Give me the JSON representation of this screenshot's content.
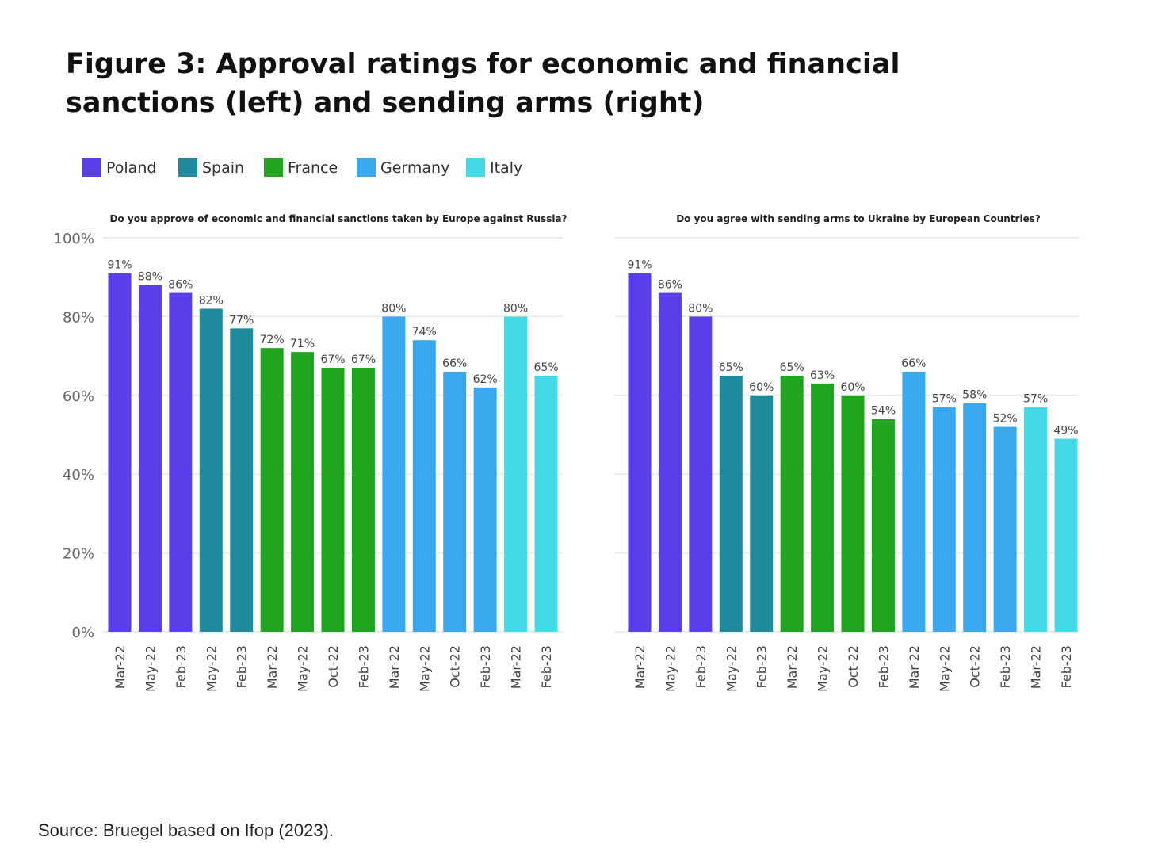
{
  "title_line1": "Figure 3: Approval ratings for economic and financial",
  "title_line2": "sanctions (left) and sending arms (right)",
  "source": "Source: Bruegel based on Ifop (2023).",
  "legend": [
    {
      "label": "Poland",
      "color": "#5a3ee8"
    },
    {
      "label": "Spain",
      "color": "#1f8a9b"
    },
    {
      "label": "France",
      "color": "#1fa51f"
    },
    {
      "label": "Germany",
      "color": "#38a9ee"
    },
    {
      "label": "Italy",
      "color": "#44d9e6"
    }
  ],
  "chart_data": [
    {
      "type": "bar",
      "title": "Do you approve of economic and financial sanctions taken by Europe against Russia?",
      "ylim": [
        0,
        100
      ],
      "yticks": [
        "0%",
        "20%",
        "40%",
        "60%",
        "80%",
        "100%"
      ],
      "grid": true,
      "legend_position": "top-left",
      "categories": [
        "Mar-22",
        "May-22",
        "Feb-23",
        "May-22",
        "Feb-23",
        "Mar-22",
        "May-22",
        "Oct-22",
        "Feb-23",
        "Mar-22",
        "May-22",
        "Oct-22",
        "Feb-23",
        "Mar-22",
        "Feb-23"
      ],
      "country": [
        "Poland",
        "Poland",
        "Poland",
        "Spain",
        "Spain",
        "France",
        "France",
        "France",
        "France",
        "Germany",
        "Germany",
        "Germany",
        "Germany",
        "Italy",
        "Italy"
      ],
      "values": [
        91,
        88,
        86,
        82,
        77,
        72,
        71,
        67,
        67,
        80,
        74,
        66,
        62,
        80,
        65
      ]
    },
    {
      "type": "bar",
      "title": "Do you agree with sending arms to Ukraine by European Countries?",
      "ylim": [
        0,
        100
      ],
      "grid": true,
      "categories": [
        "Mar-22",
        "May-22",
        "Feb-23",
        "May-22",
        "Feb-23",
        "Mar-22",
        "May-22",
        "Oct-22",
        "Feb-23",
        "Mar-22",
        "May-22",
        "Oct-22",
        "Feb-23",
        "Mar-22",
        "Feb-23"
      ],
      "country": [
        "Poland",
        "Poland",
        "Poland",
        "Spain",
        "Spain",
        "France",
        "France",
        "France",
        "France",
        "Germany",
        "Germany",
        "Germany",
        "Germany",
        "Italy",
        "Italy"
      ],
      "values": [
        91,
        86,
        80,
        65,
        60,
        65,
        63,
        60,
        54,
        66,
        57,
        58,
        52,
        57,
        49
      ]
    }
  ]
}
